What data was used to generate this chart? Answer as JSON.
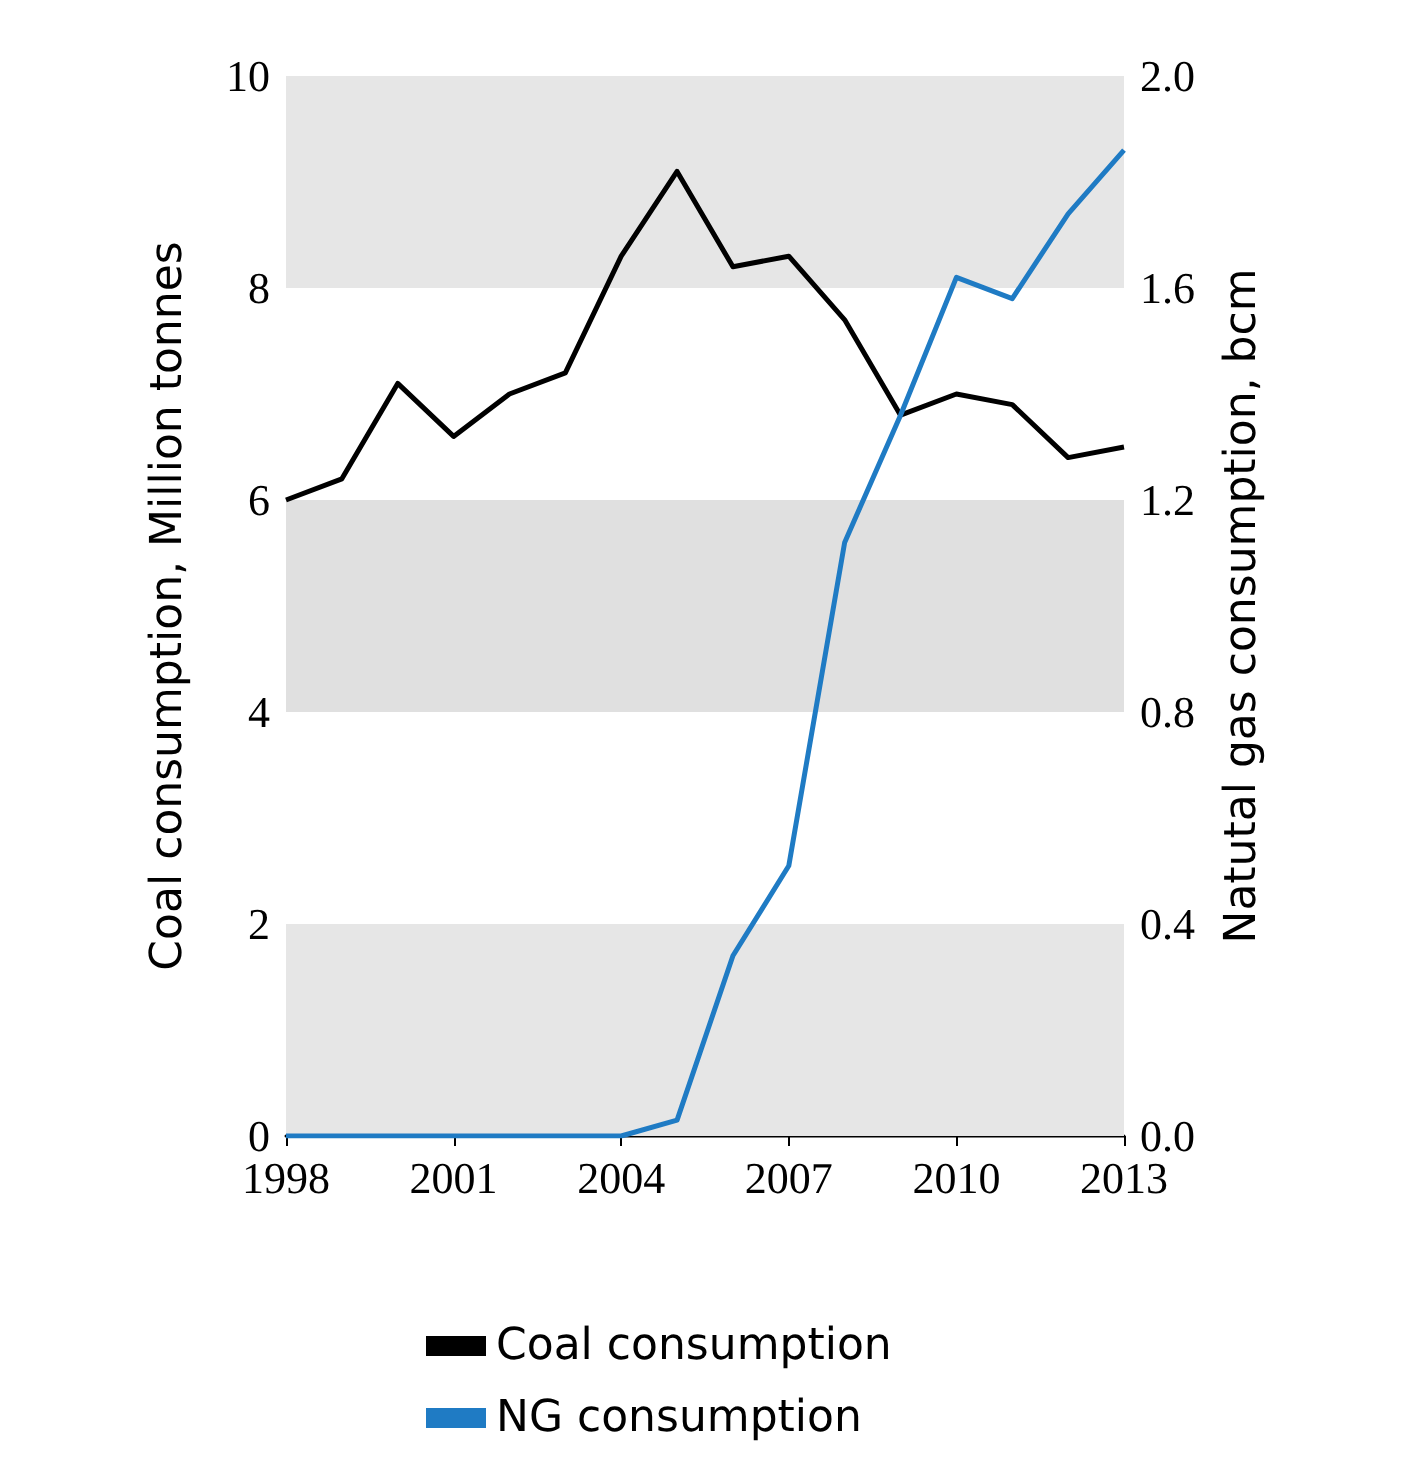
{
  "chart_data": {
    "type": "line",
    "ylabel": "Coal consumption, Million tonnes",
    "y2label": "Natutal gas consumption, bcm",
    "x": [
      1998,
      1999,
      2000,
      2001,
      2002,
      2003,
      2004,
      2005,
      2006,
      2007,
      2008,
      2009,
      2010,
      2011,
      2012,
      2013
    ],
    "series": [
      {
        "name": "Coal consumption",
        "color": "#000000",
        "values": [
          6.0,
          6.2,
          7.1,
          6.6,
          7.0,
          7.2,
          8.3,
          9.1,
          8.2,
          8.3,
          7.7,
          6.8,
          7.0,
          6.9,
          6.4,
          6.5
        ]
      },
      {
        "name": "NG consumption",
        "color": "#1f7bc4",
        "axis": "y2",
        "values": [
          0,
          0,
          0,
          0,
          0,
          0,
          0,
          0.03,
          0.34,
          0.51,
          1.12,
          1.36,
          1.62,
          1.58,
          1.74,
          1.86
        ]
      }
    ],
    "xlim": [
      1998,
      2013
    ],
    "xticks": [
      1998,
      2001,
      2004,
      2007,
      2010,
      2013
    ],
    "ylim": [
      0,
      10
    ],
    "yticks": [
      0,
      2,
      4,
      6,
      8,
      10
    ],
    "y2lim": [
      0,
      2
    ],
    "y2ticks": [
      {
        "value": 0,
        "label": "0.0"
      },
      {
        "value": 0.4,
        "label": "0.4"
      },
      {
        "value": 0.8,
        "label": "0.8"
      },
      {
        "value": 1.2,
        "label": "1.2"
      },
      {
        "value": 1.6,
        "label": "1.6"
      },
      {
        "value": 2,
        "label": "2.0"
      }
    ],
    "bands": [
      {
        "axis": "y",
        "from": 0,
        "to": 2,
        "color": "#e6e6e6"
      },
      {
        "axis": "y",
        "from": 4,
        "to": 6,
        "color": "#e0e0e0"
      },
      {
        "axis": "y",
        "from": 8,
        "to": 10,
        "color": "#e6e6e6"
      }
    ],
    "grid": false,
    "legend": "bottom",
    "marker": "none",
    "line_style": "solid"
  }
}
